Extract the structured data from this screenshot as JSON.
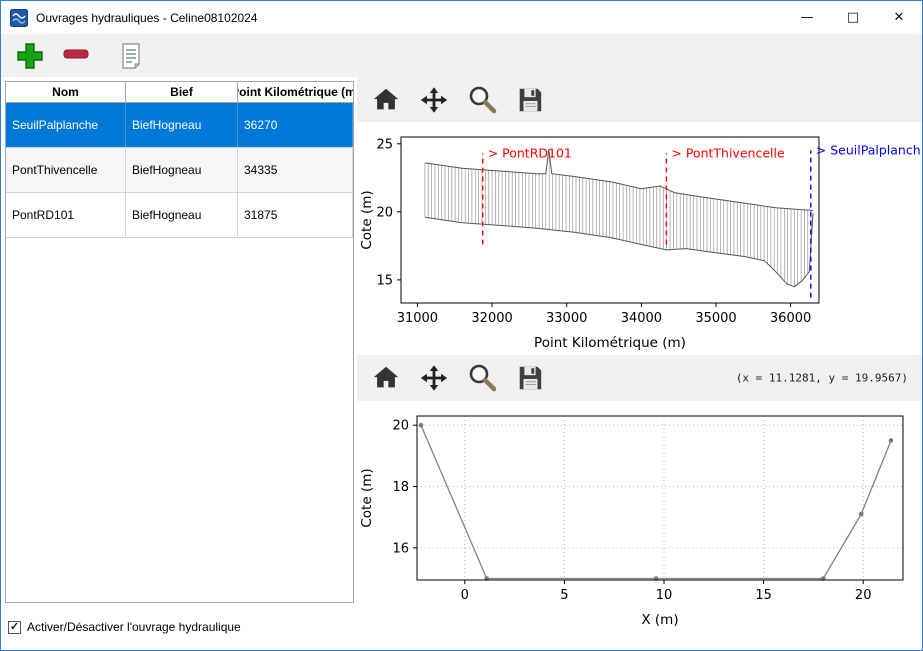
{
  "window": {
    "title": "Ouvrages hydrauliques - Celine08102024",
    "minimize_glyph": "—",
    "maximize_glyph": "□",
    "close_glyph": "✕"
  },
  "table": {
    "columns": [
      "Nom",
      "Bief",
      "Point Kilométrique (m)"
    ],
    "rows": [
      {
        "nom": "SeuilPalplanche",
        "bief": "BiefHogneau",
        "pk": "36270",
        "selected": true
      },
      {
        "nom": "PontThivencelle",
        "bief": "BiefHogneau",
        "pk": "34335",
        "selected": false
      },
      {
        "nom": "PontRD101",
        "bief": "BiefHogneau",
        "pk": "31875",
        "selected": false
      }
    ]
  },
  "checkbox": {
    "label": "Activer/Désactiver l'ouvrage hydraulique",
    "checked": true,
    "check_glyph": "✓"
  },
  "readout": "(x = 11.1281,  y = 19.9567)",
  "chart_data": [
    {
      "type": "area",
      "subtype": "longitudinal-profile-with-vertical-hatching",
      "xlabel": "Point Kilométrique (m)",
      "ylabel": "Cote (m)",
      "xlim": [
        30780,
        36380
      ],
      "ylim": [
        13.3,
        25.5
      ],
      "xticks": [
        31000,
        32000,
        33000,
        34000,
        35000,
        36000
      ],
      "yticks": [
        15,
        20,
        25
      ],
      "hatch_step": 45,
      "top_envelope": [
        [
          31100,
          23.6
        ],
        [
          31600,
          23.2
        ],
        [
          32100,
          23.0
        ],
        [
          32600,
          22.8
        ],
        [
          32720,
          22.8
        ],
        [
          32760,
          24.6
        ],
        [
          32800,
          22.8
        ],
        [
          33100,
          22.6
        ],
        [
          33600,
          22.2
        ],
        [
          34000,
          21.7
        ],
        [
          34250,
          21.9
        ],
        [
          34450,
          21.4
        ],
        [
          34800,
          21.1
        ],
        [
          35300,
          20.7
        ],
        [
          35800,
          20.3
        ],
        [
          36300,
          20.1
        ]
      ],
      "bottom_envelope": [
        [
          31100,
          19.6
        ],
        [
          31600,
          19.2
        ],
        [
          32100,
          19.0
        ],
        [
          32600,
          18.8
        ],
        [
          33100,
          18.5
        ],
        [
          33600,
          18.1
        ],
        [
          34000,
          17.6
        ],
        [
          34335,
          17.2
        ],
        [
          34600,
          17.3
        ],
        [
          35000,
          17.0
        ],
        [
          35400,
          16.7
        ],
        [
          35650,
          16.4
        ],
        [
          35800,
          15.6
        ],
        [
          35950,
          14.7
        ],
        [
          36050,
          14.5
        ],
        [
          36150,
          14.9
        ],
        [
          36250,
          15.6
        ],
        [
          36300,
          19.9
        ]
      ],
      "markers": [
        {
          "x": 31875,
          "label": "> PontRD101",
          "color": "#ff0000",
          "y0": 17.6,
          "y1": 24.3
        },
        {
          "x": 34335,
          "label": "> PontThivencelle",
          "color": "#ff0000",
          "y0": 17.6,
          "y1": 24.3
        },
        {
          "x": 36270,
          "label": "> SeuilPalplanche",
          "color": "#0000ff",
          "y0": 13.7,
          "y1": 24.5
        }
      ]
    },
    {
      "type": "line",
      "subtype": "cross-section",
      "xlabel": "X (m)",
      "ylabel": "Cote (m)",
      "xlim": [
        -2.4,
        22.0
      ],
      "ylim": [
        14.95,
        20.3
      ],
      "xticks": [
        0,
        5,
        10,
        15,
        20
      ],
      "yticks": [
        16,
        18,
        20
      ],
      "grid": true,
      "line_color": "#808080",
      "x": [
        -2.2,
        1.1,
        9.6,
        18.0,
        19.9,
        21.4
      ],
      "y": [
        20.0,
        15.0,
        15.0,
        15.0,
        17.1,
        19.5
      ]
    }
  ],
  "colors": {
    "selection_bg": "#0078d7",
    "selection_text": "#ffffff",
    "toolbar_bg": "#f0f0f0",
    "add_green": "#17a317",
    "remove_red": "#c22742",
    "marker_red": "#ff0000",
    "marker_blue": "#0000ff"
  }
}
